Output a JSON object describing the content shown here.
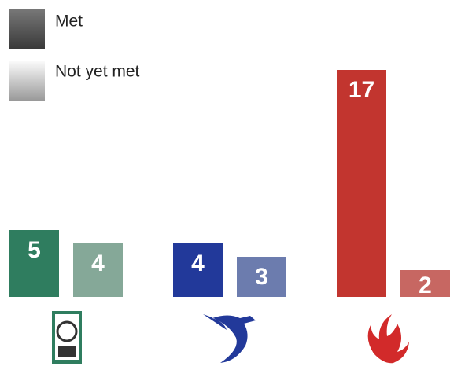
{
  "chart_data": {
    "type": "bar",
    "categories": [
      null,
      null,
      null
    ],
    "series": [
      {
        "name": "Met",
        "color": "#5a5a5a",
        "colors": [
          "#2f7d5f",
          "#22399a",
          "#c2352f"
        ],
        "values": [
          5,
          4,
          17
        ]
      },
      {
        "name": "Not yet met",
        "color": "#c8c8c8",
        "colors": [
          "#85a898",
          "#6c7cae",
          "#c76762"
        ],
        "values": [
          4,
          3,
          2
        ]
      }
    ]
  }
}
